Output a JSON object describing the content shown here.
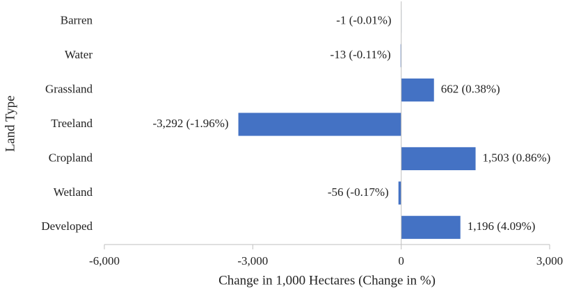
{
  "chart_data": {
    "type": "hbar",
    "categories": [
      "Barren",
      "Water",
      "Grassland",
      "Treeland",
      "Cropland",
      "Wetland",
      "Developed"
    ],
    "values": [
      -1,
      -13,
      662,
      -3292,
      1503,
      -56,
      1196
    ],
    "value_labels": [
      "-1 (-0.01%)",
      "-13 (-0.11%)",
      "662 (0.38%)",
      "-3,292 (-1.96%)",
      "1,503 (0.86%)",
      "-56 (-0.17%)",
      "1,196 (4.09%)"
    ],
    "color": "#4472c4",
    "xlim": [
      -6000,
      3000
    ],
    "xticks": [
      {
        "value": -6000,
        "label": "-6,000"
      },
      {
        "value": -3000,
        "label": "-3,000"
      },
      0,
      {
        "value": 3000,
        "label": "3,000"
      }
    ],
    "x_label": "Change in 1,000 Hectares (Change in %)",
    "y_label": "Land Type"
  }
}
